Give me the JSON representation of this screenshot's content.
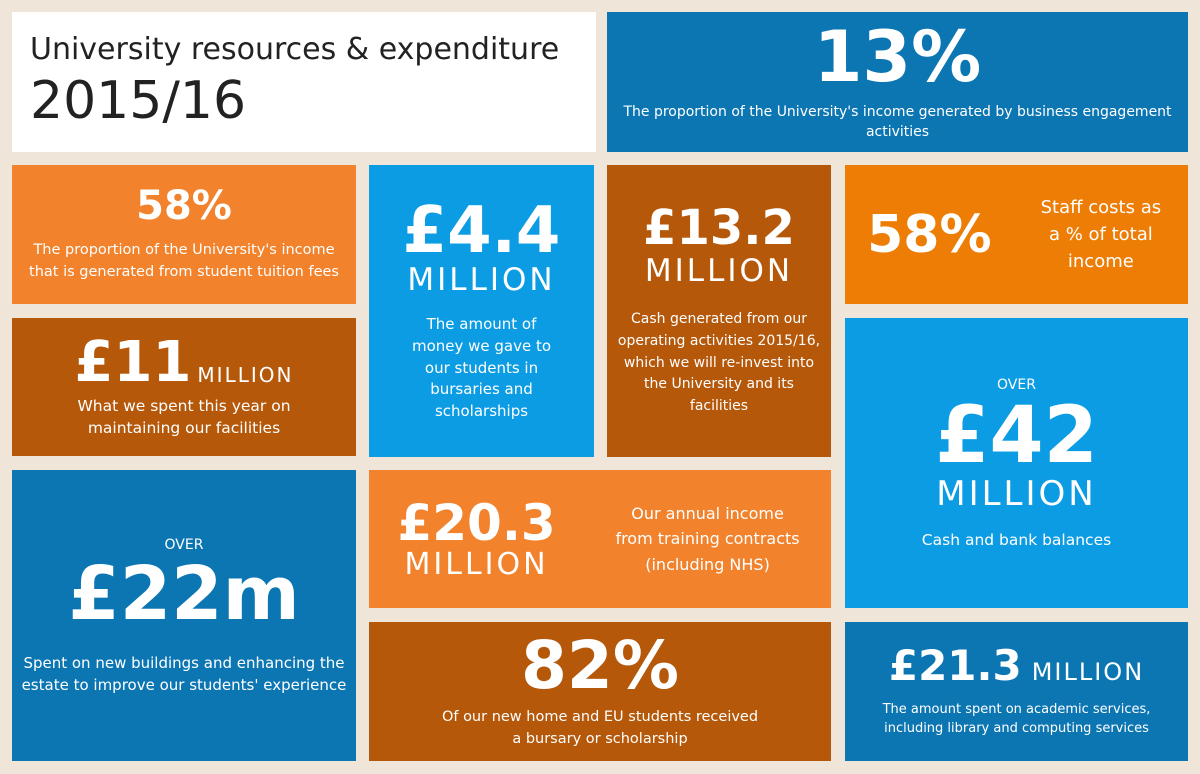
{
  "title": {
    "line1": "University resources & expenditure",
    "line2": "2015/16"
  },
  "tiles": {
    "business": {
      "value": "13%",
      "text": "The proportion of the University's income generated by business engagement activities"
    },
    "tuition": {
      "value": "58%",
      "text_l1": "The proportion of the University's income",
      "text_l2": "that is generated from student tuition fees"
    },
    "bursaries": {
      "value": "£4.4",
      "unit": "MILLION",
      "text": "The amount of money we gave to our students in bursaries and scholarships"
    },
    "cash_generated": {
      "value": "£13.2",
      "unit": "MILLION",
      "text": "Cash generated from our operating activities 2015/16, which we will re-invest into the University and its facilities"
    },
    "staff": {
      "value": "58%",
      "text": "Staff costs as a % of total income"
    },
    "facilities": {
      "value": "£11",
      "unit": "MILLION",
      "text_l1": "What we spent this year on",
      "text_l2": "maintaining our facilities"
    },
    "cash_bank": {
      "prefix": "OVER",
      "value": "£42",
      "unit": "MILLION",
      "text": "Cash and bank balances"
    },
    "buildings": {
      "prefix": "OVER",
      "value": "£22m",
      "text_l1": "Spent on new buildings and enhancing the",
      "text_l2": "estate to improve our students' experience"
    },
    "training": {
      "value": "£20.3",
      "unit": "MILLION",
      "text": "Our annual income from training contracts (including NHS)"
    },
    "students": {
      "value": "82%",
      "text_l1": "Of our new home and EU students received",
      "text_l2": "a bursary or scholarship"
    },
    "academic": {
      "value": "£21.3",
      "unit": "MILLION",
      "text_l1": "The amount spent on academic services,",
      "text_l2": "including library and computing services"
    }
  },
  "colors": {
    "background": "#efe5d8",
    "dark_blue": "#0c76b3",
    "light_blue": "#0c9ce4",
    "orange": "#f2822c",
    "deep_orange": "#ee7d06",
    "brown": "#b5580a"
  }
}
